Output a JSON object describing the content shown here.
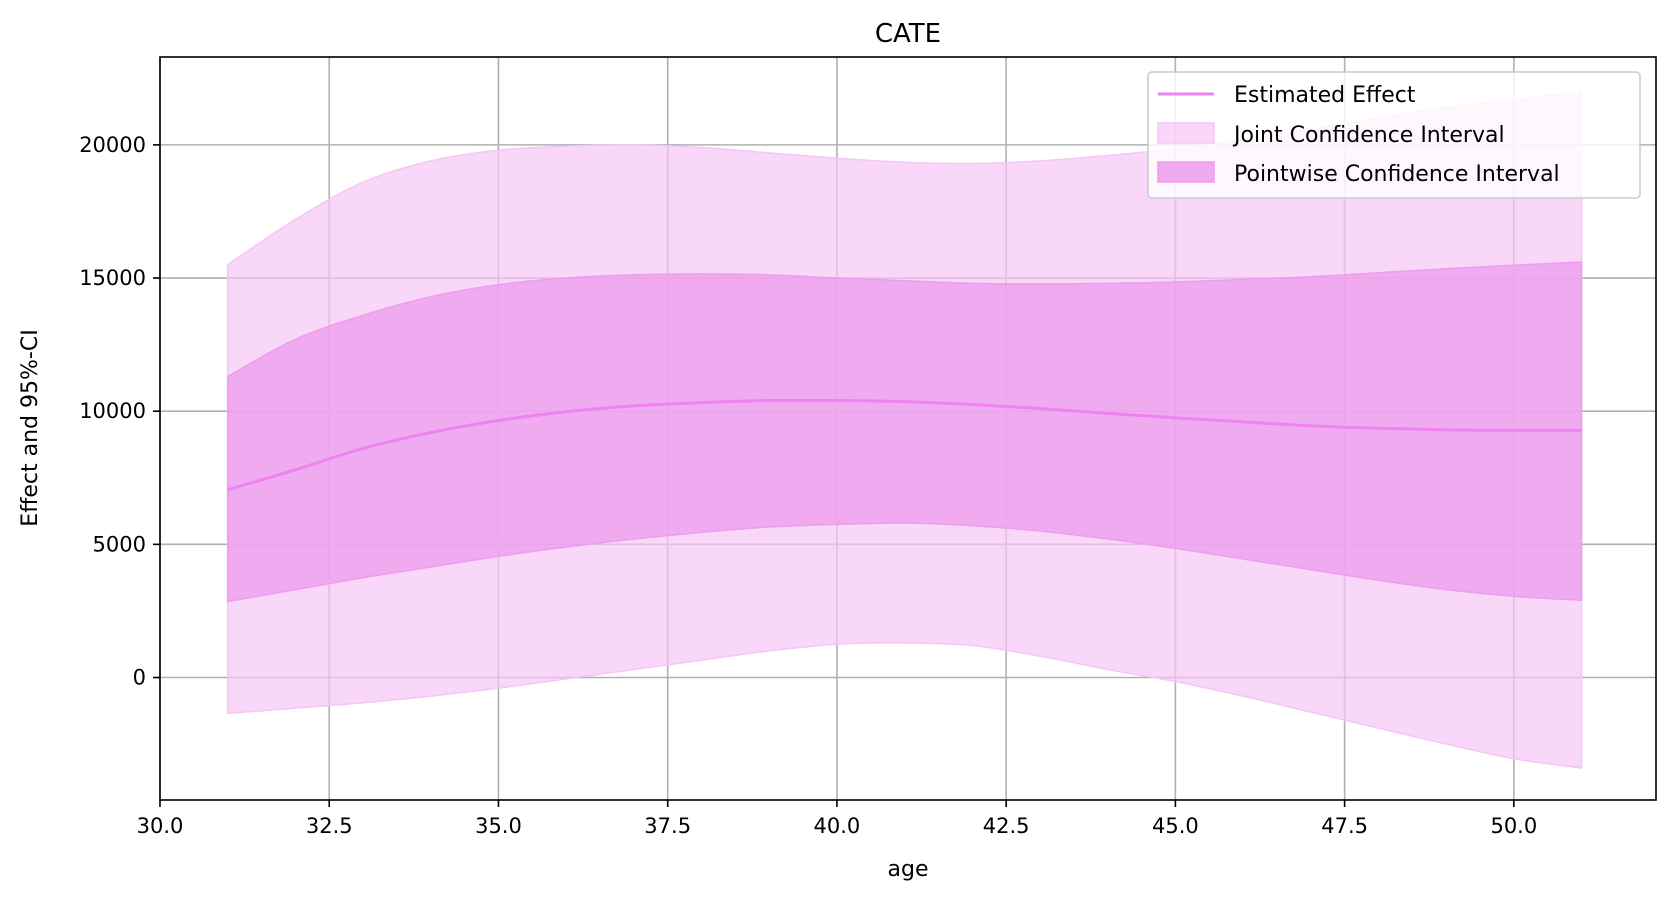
{
  "chart_data": {
    "type": "line",
    "title": "CATE",
    "xlabel": "age",
    "ylabel": "Effect and 95%-CI",
    "xlim": [
      30.0,
      52.1
    ],
    "ylim": [
      -4600,
      23300
    ],
    "xticks": [
      30.0,
      32.5,
      35.0,
      37.5,
      40.0,
      42.5,
      45.0,
      47.5,
      50.0
    ],
    "xtick_labels": [
      "30.0",
      "32.5",
      "35.0",
      "37.5",
      "40.0",
      "42.5",
      "45.0",
      "47.5",
      "50.0"
    ],
    "yticks": [
      0,
      5000,
      10000,
      15000,
      20000
    ],
    "ytick_labels": [
      "0",
      "5000",
      "10000",
      "15000",
      "20000"
    ],
    "grid": true,
    "legend_position": "top-right",
    "x": [
      31,
      32,
      33,
      34,
      35,
      36,
      37,
      38,
      39,
      40,
      41,
      42,
      43,
      44,
      45,
      46,
      47,
      48,
      49,
      50,
      51
    ],
    "series": [
      {
        "name": "Estimated Effect",
        "kind": "line",
        "color": "#ee82ee",
        "values": [
          7050,
          7800,
          8600,
          9200,
          9650,
          9980,
          10200,
          10320,
          10400,
          10400,
          10360,
          10250,
          10100,
          9920,
          9750,
          9600,
          9450,
          9360,
          9300,
          9280,
          9280
        ]
      },
      {
        "name": "Joint Confidence Interval",
        "kind": "band",
        "color": "#f5c6f5",
        "lower": [
          -1350,
          -1150,
          -950,
          -700,
          -400,
          -50,
          300,
          650,
          1000,
          1250,
          1300,
          1200,
          800,
          300,
          -150,
          -700,
          -1300,
          -1900,
          -2500,
          -3050,
          -3400
        ],
        "upper": [
          15500,
          17200,
          18600,
          19400,
          19800,
          19950,
          20000,
          19900,
          19700,
          19500,
          19350,
          19300,
          19400,
          19600,
          19850,
          20200,
          20600,
          21000,
          21400,
          21700,
          22000
        ]
      },
      {
        "name": "Pointwise Confidence Interval",
        "kind": "band",
        "color": "#ee9cee",
        "lower": [
          2850,
          3300,
          3750,
          4150,
          4550,
          4900,
          5200,
          5450,
          5650,
          5750,
          5800,
          5700,
          5500,
          5200,
          4850,
          4450,
          4050,
          3650,
          3300,
          3050,
          2900
        ],
        "upper": [
          11300,
          12700,
          13600,
          14300,
          14750,
          15000,
          15120,
          15150,
          15120,
          15000,
          14900,
          14800,
          14780,
          14800,
          14850,
          14950,
          15050,
          15200,
          15350,
          15480,
          15600
        ]
      }
    ]
  }
}
